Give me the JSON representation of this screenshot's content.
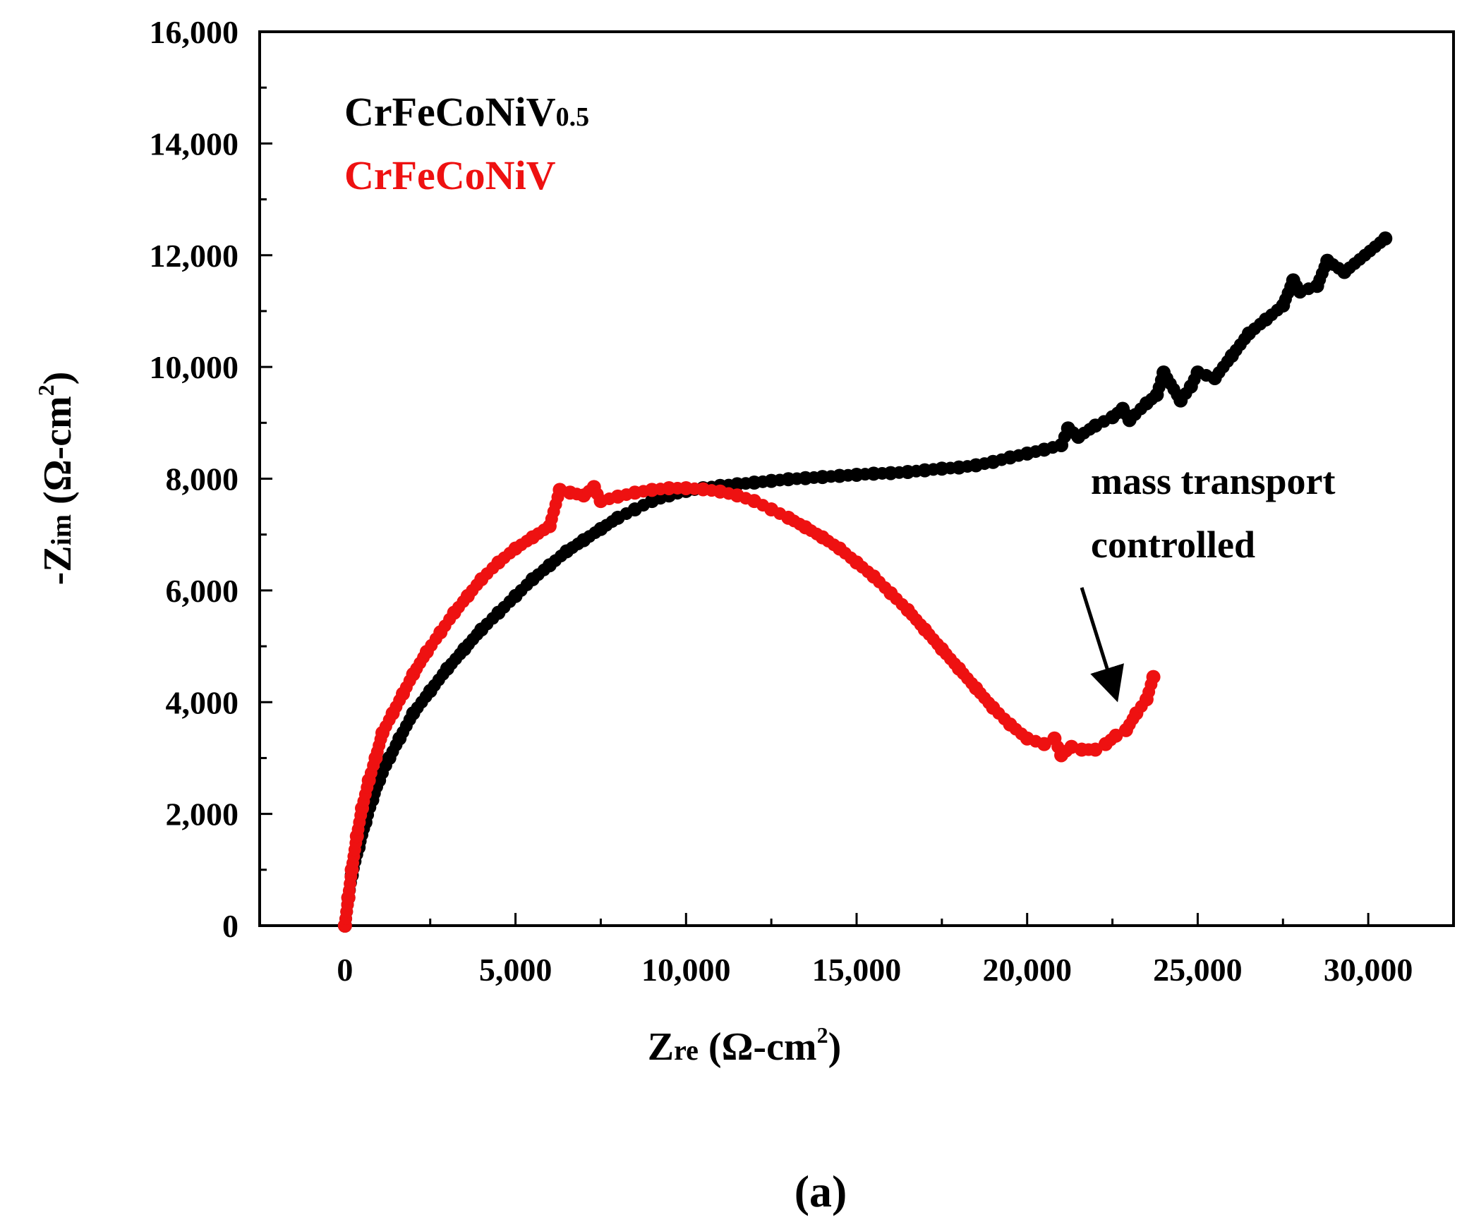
{
  "chart_data": {
    "type": "scatter",
    "title": "",
    "xlabel": {
      "main": "Z",
      "sub": "re",
      "unit": "(Ω-cm",
      "sup": "2",
      "close": ")"
    },
    "ylabel": {
      "main": "-Z",
      "sub": "im",
      "unit": "(Ω-cm",
      "sup": "2",
      "close": ")"
    },
    "xlim": [
      -2500,
      32500
    ],
    "ylim": [
      0,
      16000
    ],
    "x_ticks": [
      0,
      5000,
      10000,
      15000,
      20000,
      25000,
      30000
    ],
    "x_tick_labels": [
      "0",
      "5,000",
      "10,000",
      "15,000",
      "20,000",
      "25,000",
      "30,000"
    ],
    "y_ticks": [
      0,
      2000,
      4000,
      6000,
      8000,
      10000,
      12000,
      14000,
      16000
    ],
    "y_tick_labels": [
      "0",
      "2,000",
      "4,000",
      "6,000",
      "8,000",
      "10,000",
      "12,000",
      "14,000",
      "16,000"
    ],
    "legend_position": "top-left",
    "grid": false,
    "series": [
      {
        "name": "CrFeCoNiV0.5",
        "name_main": "CrFeCoNiV",
        "name_sub": "0.5",
        "color": "#000000",
        "x": [
          0,
          100,
          200,
          400,
          600,
          800,
          1000,
          1300,
          1600,
          2000,
          2500,
          3000,
          3500,
          4000,
          4500,
          5000,
          5500,
          6000,
          6500,
          7000,
          7500,
          8000,
          8500,
          9000,
          9500,
          10000,
          10500,
          11000,
          11500,
          12000,
          12500,
          13000,
          13500,
          14000,
          14500,
          15000,
          15500,
          16000,
          16500,
          17000,
          17500,
          18000,
          18500,
          19000,
          19500,
          20000,
          20500,
          21000,
          21200,
          21500,
          22000,
          22500,
          22800,
          23000,
          23500,
          23800,
          24000,
          24500,
          24800,
          25000,
          25500,
          26000,
          26500,
          27000,
          27500,
          27800,
          28000,
          28500,
          28800,
          29300,
          30500
        ],
        "y": [
          0,
          500,
          900,
          1400,
          1850,
          2250,
          2600,
          3000,
          3350,
          3800,
          4200,
          4600,
          4950,
          5300,
          5600,
          5900,
          6200,
          6450,
          6700,
          6900,
          7100,
          7300,
          7450,
          7600,
          7700,
          7780,
          7830,
          7870,
          7900,
          7930,
          7960,
          7990,
          8010,
          8030,
          8050,
          8070,
          8090,
          8100,
          8120,
          8150,
          8180,
          8200,
          8240,
          8300,
          8380,
          8450,
          8520,
          8600,
          8900,
          8750,
          8950,
          9100,
          9250,
          9050,
          9350,
          9500,
          9900,
          9400,
          9650,
          9900,
          9800,
          10200,
          10600,
          10850,
          11100,
          11550,
          11350,
          11450,
          11900,
          11700,
          12300
        ]
      },
      {
        "name": "CrFeCoNiV",
        "name_main": "CrFeCoNiV",
        "name_sub": "",
        "color": "#ee1111",
        "x": [
          0,
          100,
          200,
          350,
          500,
          700,
          900,
          1100,
          1400,
          1700,
          2000,
          2400,
          2800,
          3200,
          3600,
          4000,
          4500,
          5000,
          5500,
          6000,
          6300,
          6600,
          7000,
          7300,
          7500,
          8000,
          8500,
          9000,
          9500,
          10000,
          10500,
          11000,
          11500,
          12000,
          12500,
          13000,
          13500,
          14000,
          14500,
          15000,
          15500,
          16000,
          16500,
          17000,
          17500,
          18000,
          18500,
          19000,
          19500,
          20000,
          20500,
          20800,
          21000,
          21300,
          21600,
          22000,
          22300,
          22600,
          22900,
          23200,
          23500,
          23700
        ],
        "y": [
          0,
          500,
          1000,
          1600,
          2100,
          2600,
          3000,
          3450,
          3800,
          4150,
          4500,
          4900,
          5250,
          5600,
          5900,
          6200,
          6500,
          6750,
          6950,
          7150,
          7800,
          7750,
          7700,
          7850,
          7600,
          7680,
          7750,
          7800,
          7830,
          7830,
          7810,
          7770,
          7700,
          7600,
          7450,
          7300,
          7130,
          6950,
          6750,
          6500,
          6250,
          5950,
          5650,
          5300,
          4950,
          4600,
          4250,
          3900,
          3600,
          3350,
          3250,
          3350,
          3050,
          3200,
          3150,
          3150,
          3250,
          3400,
          3500,
          3800,
          4050,
          4450
        ]
      }
    ],
    "annotations": [
      {
        "text_line1": "mass transport",
        "text_line2": "controlled",
        "arrow_from": [
          21600,
          6050
        ],
        "arrow_to": [
          22500,
          4300
        ]
      }
    ]
  },
  "panel_label": "(a)"
}
